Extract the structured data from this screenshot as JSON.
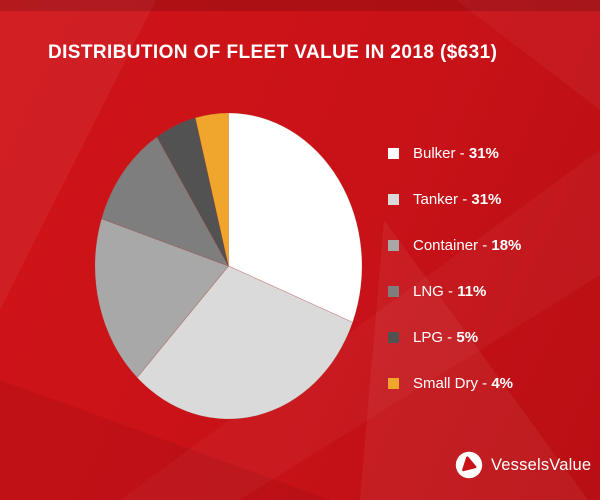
{
  "title": "DISTRIBUTION OF FLEET VALUE IN 2018 ($631)",
  "logo": {
    "text": "VesselsValue"
  },
  "colors": {
    "background": "#c81218",
    "title_text": "#ffffff",
    "legend_text": "#ffffff",
    "logo_mark_red": "#c81218",
    "logo_circle": "#ffffff"
  },
  "chart_data": {
    "type": "pie",
    "title": "DISTRIBUTION OF FLEET VALUE IN 2018 ($631)",
    "unit": "%",
    "start_angle_deg": 0,
    "direction": "clockwise",
    "legend_position": "right",
    "legend_separator": " - ",
    "series": [
      {
        "label": "Bulker",
        "value": 31,
        "color": "#ffffff"
      },
      {
        "label": "Tanker",
        "value": 31,
        "color": "#dadada"
      },
      {
        "label": "Container",
        "value": 18,
        "color": "#a8a8a8"
      },
      {
        "label": "LNG",
        "value": 11,
        "color": "#7e7e7e"
      },
      {
        "label": "LPG",
        "value": 5,
        "color": "#525252"
      },
      {
        "label": "Small Dry",
        "value": 4,
        "color": "#f0a62c"
      }
    ]
  }
}
